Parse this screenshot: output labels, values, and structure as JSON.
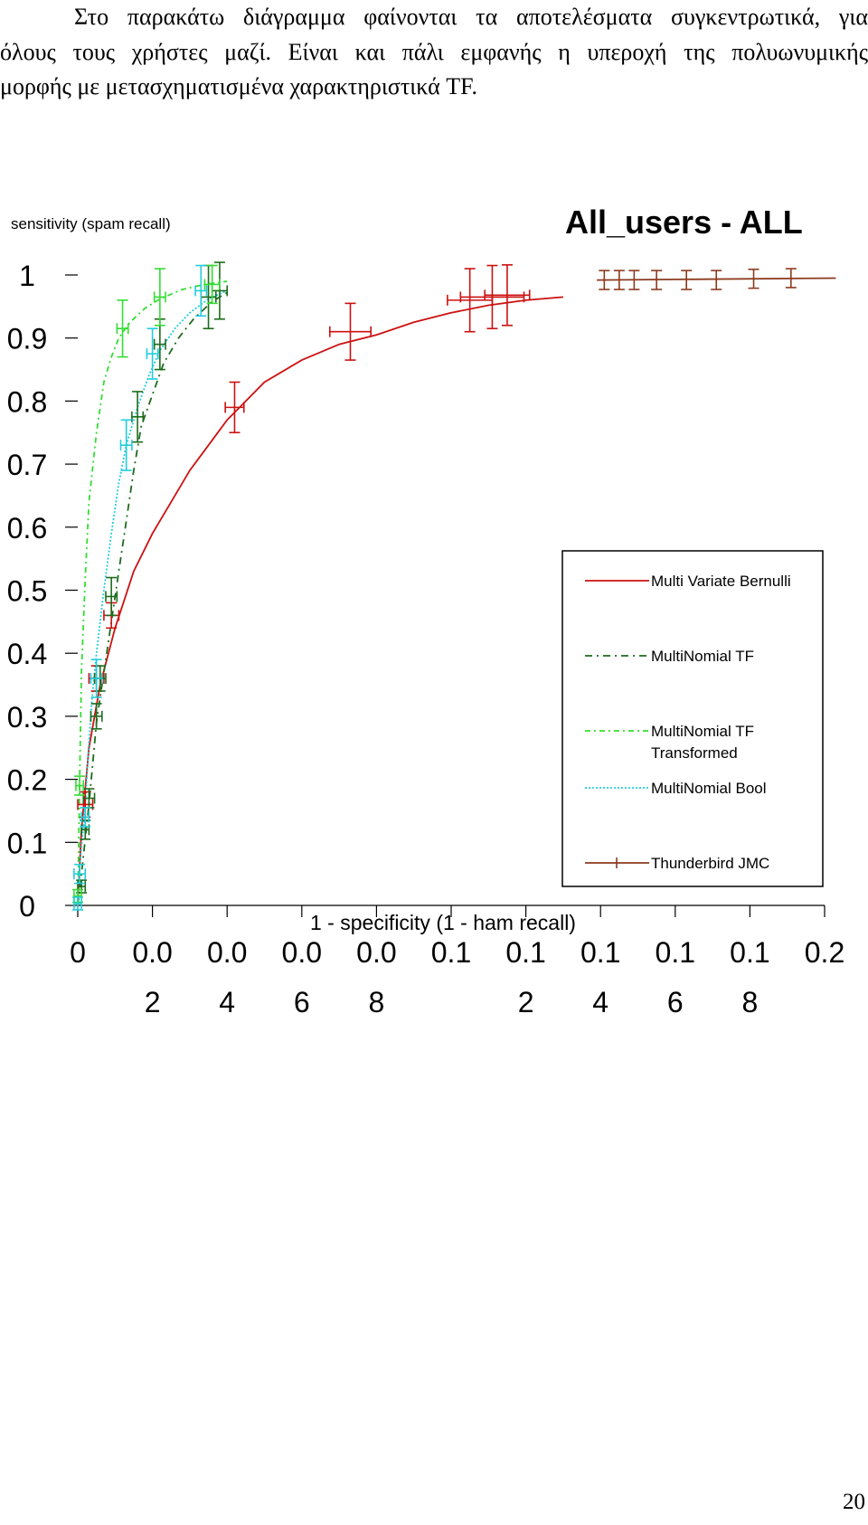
{
  "paragraph": {
    "lines": [
      "Στο παρακάτω διάγραμμα φαίνονται τα αποτελέσματα συγκεντρωτικά, για",
      "όλους τους χρήστες μαζί. Είναι και πάλι εμφανής η υπεροχή της πολυωνυμικής",
      "μορφής με μετασχηματισμένα χαρακτηριστικά TF."
    ]
  },
  "page_number": "20",
  "chart_data": {
    "type": "line",
    "title": "All_users - ALL",
    "ylabel": "sensitivity (spam recall)",
    "xlabel": "1 - specificity (1 - ham recall)",
    "xlim": [
      0,
      0.2
    ],
    "ylim": [
      0,
      1
    ],
    "x_ticks": [
      0,
      0.02,
      0.04,
      0.06,
      0.08,
      0.1,
      0.12,
      0.14,
      0.16,
      0.18,
      0.2
    ],
    "x_tick_labels": [
      [
        "0"
      ],
      [
        "0.0",
        "2"
      ],
      [
        "0.0",
        "4"
      ],
      [
        "0.0",
        "6"
      ],
      [
        "0.0",
        "8"
      ],
      [
        "0.1"
      ],
      [
        "0.1",
        "2"
      ],
      [
        "0.1",
        "4"
      ],
      [
        "0.1",
        "6"
      ],
      [
        "0.1",
        "8"
      ],
      [
        "0.2"
      ]
    ],
    "y_ticks": [
      0,
      0.1,
      0.2,
      0.3,
      0.4,
      0.5,
      0.6,
      0.7,
      0.8,
      0.9,
      1
    ],
    "y_tick_labels": [
      "0",
      "0.1",
      "0.2",
      "0.3",
      "0.4",
      "0.5",
      "0.6",
      "0.7",
      "0.8",
      "0.9",
      "1"
    ],
    "grid": false,
    "legend_position": "right",
    "series": [
      {
        "name": "Multi Variate Bernulli",
        "color": "#cc1111",
        "dash": "solid",
        "curve": [
          [
            0,
            0
          ],
          [
            0.001,
            0.12
          ],
          [
            0.003,
            0.25
          ],
          [
            0.006,
            0.35
          ],
          [
            0.01,
            0.44
          ],
          [
            0.015,
            0.53
          ],
          [
            0.02,
            0.59
          ],
          [
            0.025,
            0.64
          ],
          [
            0.03,
            0.69
          ],
          [
            0.035,
            0.73
          ],
          [
            0.04,
            0.77
          ],
          [
            0.045,
            0.8
          ],
          [
            0.05,
            0.83
          ],
          [
            0.06,
            0.865
          ],
          [
            0.07,
            0.89
          ],
          [
            0.08,
            0.905
          ],
          [
            0.09,
            0.925
          ],
          [
            0.1,
            0.94
          ],
          [
            0.11,
            0.952
          ],
          [
            0.12,
            0.96
          ],
          [
            0.13,
            0.965
          ]
        ],
        "points": [
          {
            "x": 0.002,
            "y": 0.16,
            "ex": 0.002,
            "ey": 0.02
          },
          {
            "x": 0.005,
            "y": 0.36,
            "ex": 0.002,
            "ey": 0.02
          },
          {
            "x": 0.009,
            "y": 0.46,
            "ex": 0.002,
            "ey": 0.02
          },
          {
            "x": 0.042,
            "y": 0.79,
            "ex": 0.0025,
            "ey": 0.04
          },
          {
            "x": 0.073,
            "y": 0.91,
            "ex": 0.0055,
            "ey": 0.045
          },
          {
            "x": 0.105,
            "y": 0.96,
            "ex": 0.006,
            "ey": 0.05
          },
          {
            "x": 0.111,
            "y": 0.965,
            "ex": 0.0085,
            "ey": 0.05
          },
          {
            "x": 0.115,
            "y": 0.968,
            "ex": 0.006,
            "ey": 0.048
          }
        ]
      },
      {
        "name": "MultiNomial TF",
        "color": "#1d6b1d",
        "dash": "8,5,2,5",
        "curve": [
          [
            0,
            0
          ],
          [
            0.001,
            0.05
          ],
          [
            0.003,
            0.16
          ],
          [
            0.005,
            0.29
          ],
          [
            0.007,
            0.37
          ],
          [
            0.009,
            0.45
          ],
          [
            0.011,
            0.53
          ],
          [
            0.013,
            0.61
          ],
          [
            0.015,
            0.69
          ],
          [
            0.017,
            0.76
          ],
          [
            0.02,
            0.81
          ],
          [
            0.023,
            0.86
          ],
          [
            0.027,
            0.9
          ],
          [
            0.031,
            0.93
          ],
          [
            0.036,
            0.958
          ],
          [
            0.04,
            0.972
          ]
        ],
        "points": [
          {
            "x": 0.001,
            "y": 0.03,
            "ex": 0.001,
            "ey": 0.01
          },
          {
            "x": 0.002,
            "y": 0.12,
            "ex": 0.001,
            "ey": 0.015
          },
          {
            "x": 0.003,
            "y": 0.17,
            "ex": 0.0015,
            "ey": 0.015
          },
          {
            "x": 0.005,
            "y": 0.3,
            "ex": 0.0015,
            "ey": 0.02
          },
          {
            "x": 0.006,
            "y": 0.36,
            "ex": 0.0015,
            "ey": 0.02
          },
          {
            "x": 0.009,
            "y": 0.49,
            "ex": 0.0015,
            "ey": 0.03
          },
          {
            "x": 0.016,
            "y": 0.775,
            "ex": 0.0015,
            "ey": 0.04
          },
          {
            "x": 0.022,
            "y": 0.89,
            "ex": 0.0015,
            "ey": 0.04
          },
          {
            "x": 0.035,
            "y": 0.965,
            "ex": 0.002,
            "ey": 0.05
          },
          {
            "x": 0.038,
            "y": 0.975,
            "ex": 0.002,
            "ey": 0.045
          }
        ]
      },
      {
        "name": "MultiNomial TF Transformed",
        "color": "#33dd33",
        "dash": "6,4,2,4",
        "curve": [
          [
            0,
            0
          ],
          [
            0.0005,
            0.2
          ],
          [
            0.001,
            0.37
          ],
          [
            0.002,
            0.52
          ],
          [
            0.003,
            0.64
          ],
          [
            0.005,
            0.75
          ],
          [
            0.007,
            0.83
          ],
          [
            0.009,
            0.87
          ],
          [
            0.011,
            0.9
          ],
          [
            0.014,
            0.925
          ],
          [
            0.018,
            0.947
          ],
          [
            0.022,
            0.962
          ],
          [
            0.028,
            0.977
          ],
          [
            0.034,
            0.985
          ],
          [
            0.04,
            0.99
          ]
        ],
        "points": [
          {
            "x": 0,
            "y": 0.015,
            "ex": 0.001,
            "ey": 0.01
          },
          {
            "x": 0.0005,
            "y": 0.19,
            "ex": 0.001,
            "ey": 0.015
          },
          {
            "x": 0.012,
            "y": 0.915,
            "ex": 0.0015,
            "ey": 0.045
          },
          {
            "x": 0.022,
            "y": 0.965,
            "ex": 0.0015,
            "ey": 0.045
          },
          {
            "x": 0.036,
            "y": 0.985,
            "ex": 0.002,
            "ey": 0.03
          }
        ]
      },
      {
        "name": "MultiNomial Bool",
        "color": "#22ccdd",
        "dash": "2,2",
        "curve": [
          [
            0,
            0
          ],
          [
            0.0005,
            0.06
          ],
          [
            0.002,
            0.16
          ],
          [
            0.003,
            0.26
          ],
          [
            0.004,
            0.34
          ],
          [
            0.005,
            0.4
          ],
          [
            0.007,
            0.5
          ],
          [
            0.009,
            0.59
          ],
          [
            0.011,
            0.67
          ],
          [
            0.013,
            0.73
          ],
          [
            0.016,
            0.79
          ],
          [
            0.019,
            0.84
          ],
          [
            0.022,
            0.88
          ],
          [
            0.026,
            0.915
          ],
          [
            0.03,
            0.94
          ],
          [
            0.035,
            0.962
          ],
          [
            0.04,
            0.975
          ]
        ],
        "points": [
          {
            "x": 0,
            "y": 0.003,
            "ex": 0.001,
            "ey": 0.01
          },
          {
            "x": 0.0005,
            "y": 0.05,
            "ex": 0.0015,
            "ey": 0.015
          },
          {
            "x": 0.002,
            "y": 0.14,
            "ex": 0.001,
            "ey": 0.015
          },
          {
            "x": 0.005,
            "y": 0.36,
            "ex": 0.0015,
            "ey": 0.03
          },
          {
            "x": 0.013,
            "y": 0.73,
            "ex": 0.0015,
            "ey": 0.04
          },
          {
            "x": 0.02,
            "y": 0.875,
            "ex": 0.0015,
            "ey": 0.04
          },
          {
            "x": 0.033,
            "y": 0.975,
            "ex": 0.0015,
            "ey": 0.04
          }
        ]
      },
      {
        "name": "Thunderbird JMC",
        "color": "#8b3a1f",
        "dash": "solid",
        "curve": [
          [
            0.139,
            0.992
          ],
          [
            0.203,
            0.995
          ]
        ],
        "points": [
          {
            "x": 0.141,
            "y": 0.992,
            "ex": 0,
            "ey": 0.015
          },
          {
            "x": 0.145,
            "y": 0.992,
            "ex": 0,
            "ey": 0.015
          },
          {
            "x": 0.149,
            "y": 0.992,
            "ex": 0,
            "ey": 0.015
          },
          {
            "x": 0.155,
            "y": 0.992,
            "ex": 0,
            "ey": 0.015
          },
          {
            "x": 0.163,
            "y": 0.992,
            "ex": 0,
            "ey": 0.015
          },
          {
            "x": 0.171,
            "y": 0.992,
            "ex": 0,
            "ey": 0.015
          },
          {
            "x": 0.181,
            "y": 0.994,
            "ex": 0,
            "ey": 0.015
          },
          {
            "x": 0.191,
            "y": 0.995,
            "ex": 0,
            "ey": 0.015
          }
        ]
      }
    ],
    "legend": [
      {
        "lines": [
          "Multi Variate Bernulli"
        ]
      },
      {
        "lines": [
          "MultiNomial TF"
        ]
      },
      {
        "lines": [
          "MultiNomial TF",
          "Transformed"
        ]
      },
      {
        "lines": [
          "MultiNomial Bool"
        ]
      },
      {
        "lines": [
          "Thunderbird JMC"
        ],
        "marker": true
      }
    ]
  }
}
